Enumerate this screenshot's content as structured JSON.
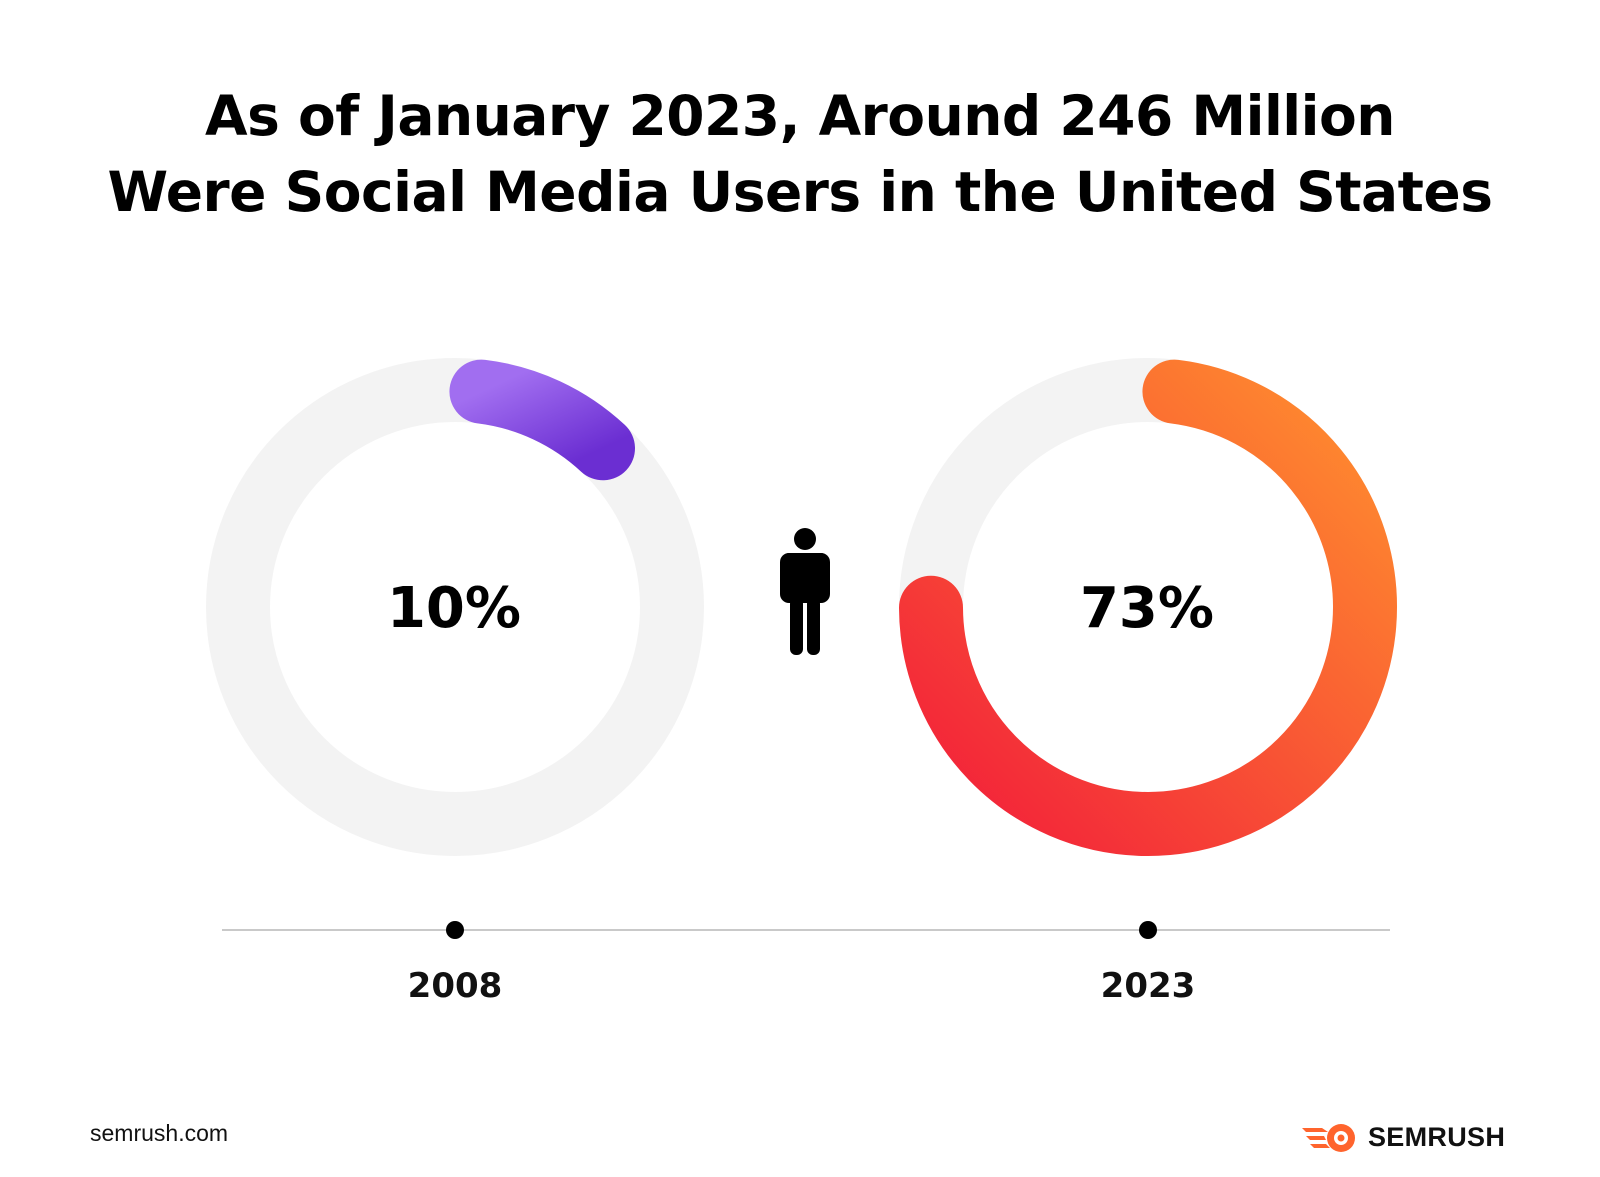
{
  "title": {
    "line1": "As of January 2023, Around 246 Million",
    "line2": "Were Social Media Users in the United States"
  },
  "chart_data": {
    "type": "donut",
    "title": "As of January 2023, Around 246 Million Were Social Media Users in the United States",
    "unit": "%",
    "categories": [
      "2008",
      "2023"
    ],
    "values": [
      10,
      73
    ],
    "labels": [
      "10%",
      "73%"
    ],
    "colors": {
      "track": "#f3f3f3",
      "2008": [
        "#a16ef0",
        "#6b2ed2"
      ],
      "2023": [
        "#ff8f2e",
        "#f21d3a"
      ]
    },
    "icon": "person-icon"
  },
  "footer": {
    "url": "semrush.com",
    "brand": "SEMRUSH",
    "brand_icon": "semrush-logo-icon"
  }
}
